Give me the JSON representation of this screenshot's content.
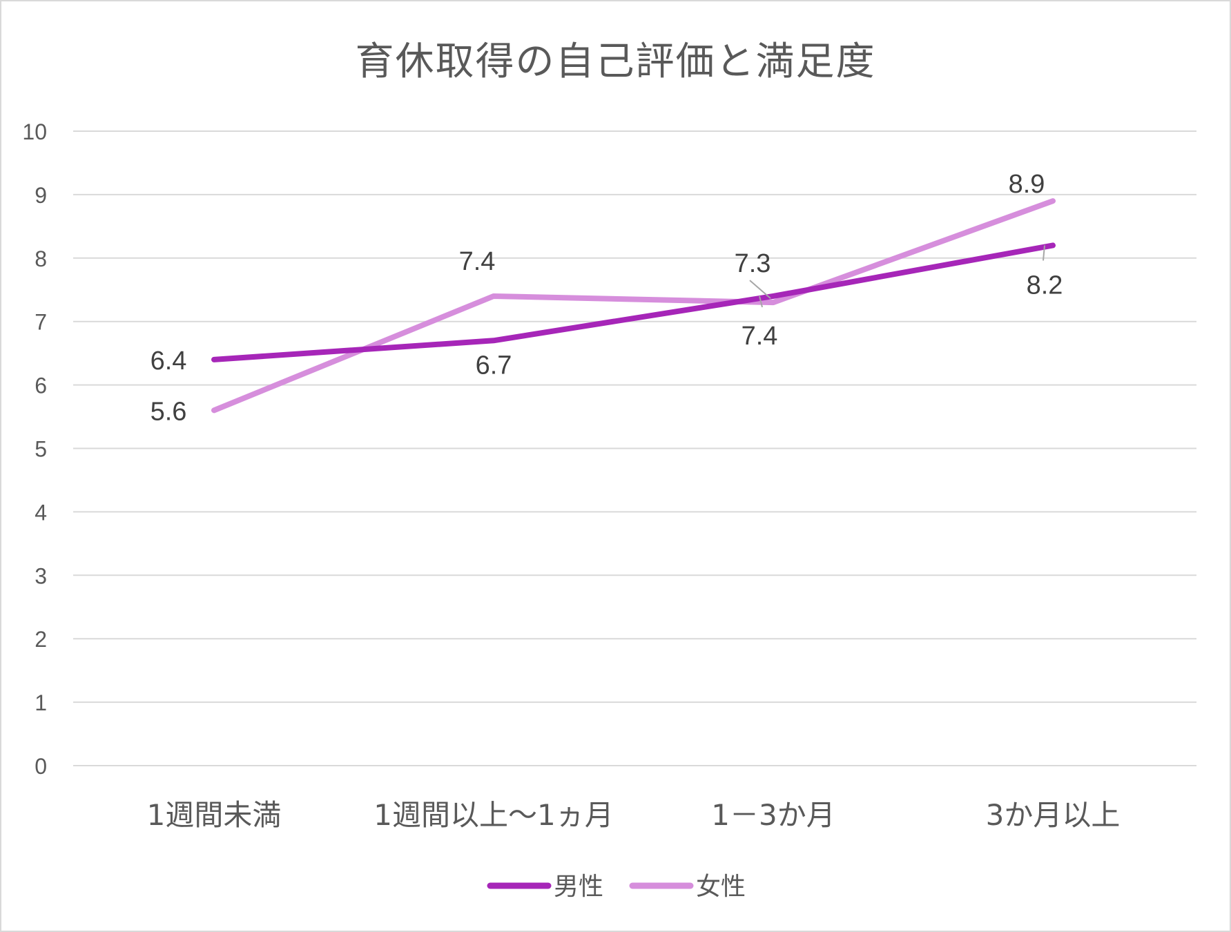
{
  "chart_data": {
    "type": "line",
    "title": "育休取得の自己評価と満足度",
    "categories": [
      "1週間未満",
      "1週間以上～1ヵ月",
      "1－3か月",
      "3か月以上"
    ],
    "series": [
      {
        "name": "男性",
        "values": [
          6.4,
          6.7,
          7.4,
          8.2
        ],
        "color": "#a626b8"
      },
      {
        "name": "女性",
        "values": [
          5.6,
          7.4,
          7.3,
          8.9
        ],
        "color": "#d68edc"
      }
    ],
    "ylim": [
      0,
      10
    ],
    "yticks": [
      "0",
      "1",
      "2",
      "3",
      "4",
      "5",
      "6",
      "7",
      "8",
      "9",
      "10"
    ],
    "grid": true,
    "legend_position": "bottom",
    "data_labels": true
  }
}
